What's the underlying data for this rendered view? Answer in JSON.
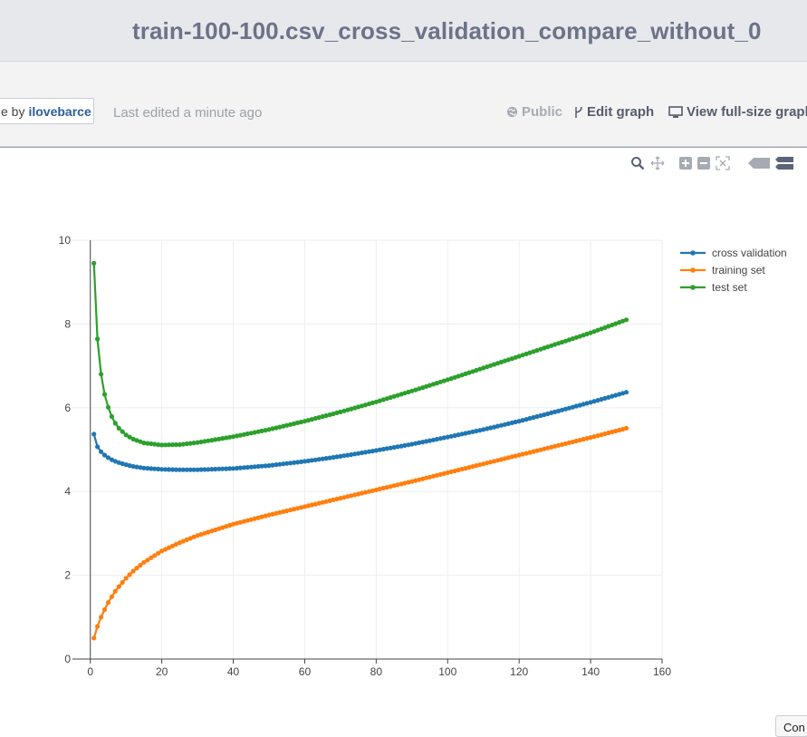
{
  "header": {
    "title": "train-100-100.csv_cross_validation_compare_without_0"
  },
  "info_bar": {
    "owner_prefix": "e by",
    "owner_name": "ilovebarce",
    "last_edited": "Last edited a minute ago",
    "public_label": "Public",
    "edit_label": "Edit graph",
    "view_label": "View full-size graph"
  },
  "modebar": {
    "icons": [
      "zoom-icon",
      "pan-icon",
      "zoom-in-icon",
      "zoom-out-icon",
      "autoscale-icon",
      "hover-closest-icon",
      "hover-compare-icon"
    ]
  },
  "corner_button": {
    "label": "Con"
  },
  "chart_data": {
    "type": "line",
    "title": "",
    "xlabel": "",
    "ylabel": "",
    "xlim": [
      -5,
      160
    ],
    "ylim": [
      0,
      10
    ],
    "x_ticks": [
      0,
      20,
      40,
      60,
      80,
      100,
      120,
      140,
      160
    ],
    "y_ticks": [
      0,
      2,
      4,
      6,
      8,
      10
    ],
    "grid": true,
    "legend_position": "top-right",
    "x": [
      1,
      2,
      3,
      4,
      5,
      6,
      7,
      8,
      10,
      12,
      15,
      20,
      25,
      30,
      40,
      50,
      60,
      70,
      80,
      90,
      100,
      110,
      120,
      130,
      140,
      150
    ],
    "series": [
      {
        "name": "cross validation",
        "color": "#1f77b4",
        "values": [
          5.37,
          5.07,
          4.95,
          4.87,
          4.81,
          4.76,
          4.72,
          4.69,
          4.64,
          4.6,
          4.56,
          4.53,
          4.52,
          4.52,
          4.55,
          4.62,
          4.72,
          4.84,
          4.98,
          5.13,
          5.3,
          5.48,
          5.68,
          5.9,
          6.13,
          6.37
        ]
      },
      {
        "name": "training set",
        "color": "#ff7f0e",
        "values": [
          0.5,
          0.78,
          1.0,
          1.18,
          1.35,
          1.49,
          1.62,
          1.73,
          1.93,
          2.1,
          2.31,
          2.58,
          2.78,
          2.95,
          3.22,
          3.44,
          3.64,
          3.84,
          4.04,
          4.24,
          4.45,
          4.66,
          4.87,
          5.08,
          5.29,
          5.51
        ]
      },
      {
        "name": "test set",
        "color": "#2ca02c",
        "values": [
          9.45,
          7.64,
          6.8,
          6.32,
          6.01,
          5.79,
          5.63,
          5.51,
          5.35,
          5.25,
          5.16,
          5.11,
          5.12,
          5.17,
          5.31,
          5.48,
          5.68,
          5.9,
          6.14,
          6.4,
          6.67,
          6.95,
          7.23,
          7.51,
          7.79,
          8.1
        ]
      }
    ]
  }
}
